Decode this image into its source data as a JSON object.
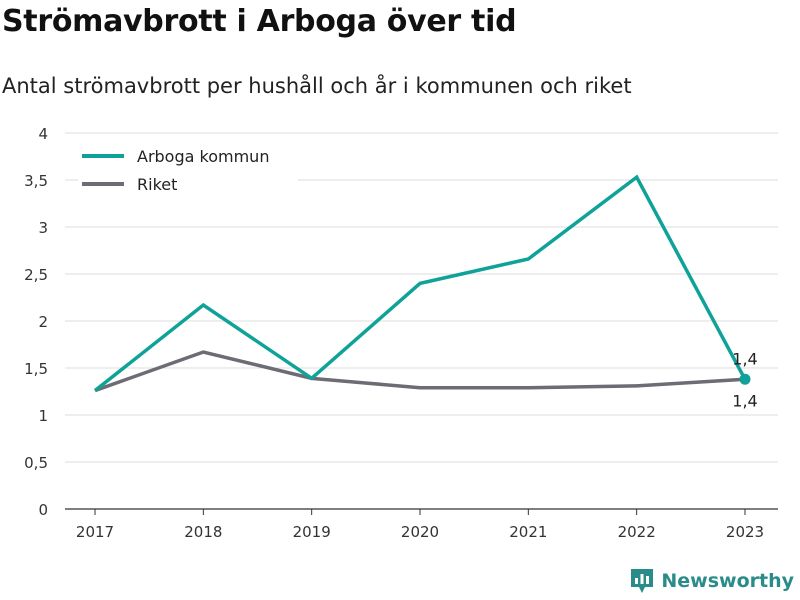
{
  "title": "Strömavbrott i Arboga över tid",
  "subtitle": "Antal strömavbrott per hushåll och år i kommunen och riket",
  "brand": "Newsworthy",
  "chart_data": {
    "type": "line",
    "x": [
      "2017",
      "2018",
      "2019",
      "2020",
      "2021",
      "2022",
      "2023"
    ],
    "ylim": [
      0,
      4
    ],
    "yticks": [
      0,
      0.5,
      1,
      1.5,
      2,
      2.5,
      3,
      3.5,
      4
    ],
    "ytick_labels": [
      "0",
      "0,5",
      "1",
      "1,5",
      "2",
      "2,5",
      "3",
      "3,5",
      "4"
    ],
    "grid": true,
    "legend_position": "top-left",
    "series": [
      {
        "name": "Arboga kommun",
        "color": "#0fa298",
        "values": [
          1.26,
          2.17,
          1.39,
          2.4,
          2.66,
          3.53,
          1.38
        ],
        "end_label": "1,4",
        "end_marker": true
      },
      {
        "name": "Riket",
        "color": "#6d6b73",
        "values": [
          1.26,
          1.67,
          1.39,
          1.29,
          1.29,
          1.31,
          1.38
        ],
        "end_label": "1,4",
        "end_marker": false
      }
    ]
  }
}
